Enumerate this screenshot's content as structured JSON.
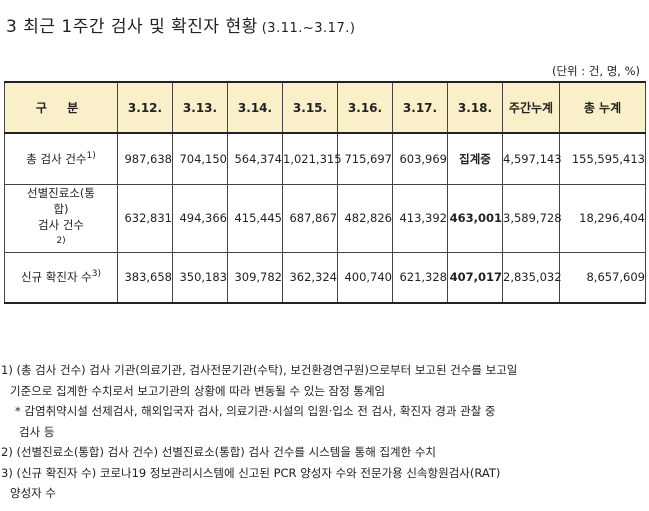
{
  "title": {
    "main": "3 최근 1주간 검사 및 확진자 현황",
    "period": "(3.11.~3.17.)"
  },
  "unit": "(단위 : 건, 명, %)",
  "table": {
    "headers": [
      "구 분",
      "3.12.",
      "3.13.",
      "3.14.",
      "3.15.",
      "3.16.",
      "3.17.",
      "3.18.",
      "주간누계",
      "총 누계"
    ],
    "rows": [
      {
        "label": "총 검사 건수",
        "sup": "1)",
        "values": [
          "987,638",
          "704,150",
          "564,374",
          "1,021,315",
          "715,697",
          "603,969",
          "집계중",
          "4,597,143",
          "155,595,413"
        ]
      },
      {
        "label_lines": [
          "선별진료소(통",
          "합)",
          "검사 건수"
        ],
        "sup": "2)",
        "values": [
          "632,831",
          "494,366",
          "415,445",
          "687,867",
          "482,826",
          "413,392",
          "463,001",
          "3,589,728",
          "18,296,404"
        ]
      },
      {
        "label": "신규 확진자 수",
        "sup": "3)",
        "values": [
          "383,658",
          "350,183",
          "309,782",
          "362,324",
          "400,740",
          "621,328",
          "407,017",
          "2,835,032",
          "8,657,609"
        ]
      }
    ]
  },
  "notes": [
    {
      "lines": [
        "1) (총 검사 건수) 검사 기관(의료기관, 검사전문기관(수탁), 보건환경연구원)으로부터 보고된 건수를 보고일",
        "기준으로 집계한 수치로서 보고기관의 상황에 따라 변동될 수 있는 잠정 통계임"
      ]
    },
    {
      "lines": [
        "* 감염취약시설 선제검사, 해외입국자 검사, 의료기관·시설의 입원·입소 전 검사, 확진자 경과 관찰 중",
        "검사 등"
      ]
    },
    {
      "lines": [
        "2) (선별진료소(통합) 검사 건수) 선별진료소(통합) 검사 건수를 시스템을 통해 집계한 수치"
      ]
    },
    {
      "lines": [
        "3) (신규 확진자 수) 코로나19 정보관리시스템에 신고된 PCR 양성자 수와 전문가용 신속항원검사(RAT)",
        "양성자 수"
      ]
    }
  ],
  "colors": {
    "header_bg": "#f9f0c9",
    "border": "#444444"
  }
}
